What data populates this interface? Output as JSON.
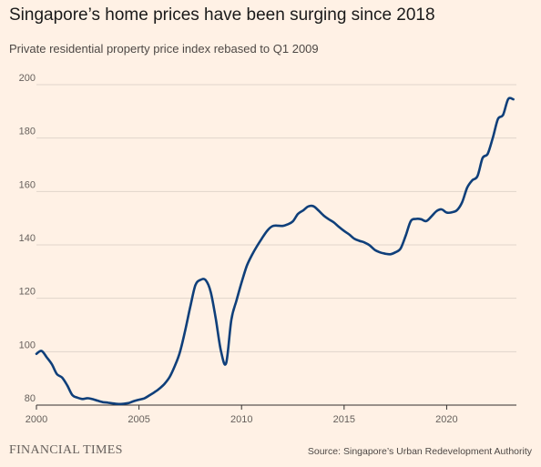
{
  "header": {
    "title": "Singapore’s home prices have been surging since 2018",
    "subtitle": "Private residential property price index rebased to Q1 2009"
  },
  "footer": {
    "logo": "FINANCIAL TIMES",
    "source": "Source: Singapore’s Urban Redevelopment Authority"
  },
  "colors": {
    "background": "#fff1e5",
    "line": "#0f3f7a",
    "grid": "#e0d5cb"
  },
  "chart_data": {
    "type": "line",
    "title": "Singapore’s home prices have been surging since 2018",
    "subtitle": "Private residential property price index rebased to Q1 2009",
    "xlabel": "",
    "ylabel": "",
    "xlim": [
      2000,
      2023.4
    ],
    "ylim": [
      80,
      200
    ],
    "x_ticks": [
      2000,
      2005,
      2010,
      2015,
      2020
    ],
    "y_ticks": [
      80,
      100,
      120,
      140,
      160,
      180,
      200
    ],
    "grid": true,
    "series": [
      {
        "x": [
          2000.0,
          2000.25,
          2000.5,
          2000.75,
          2001.0,
          2001.25,
          2001.5,
          2001.75,
          2002.0,
          2002.25,
          2002.5,
          2002.75,
          2003.0,
          2003.25,
          2003.5,
          2003.75,
          2004.0,
          2004.25,
          2004.5,
          2004.75,
          2005.0,
          2005.25,
          2005.5,
          2005.75,
          2006.0,
          2006.25,
          2006.5,
          2006.75,
          2007.0,
          2007.25,
          2007.5,
          2007.75,
          2008.0,
          2008.25,
          2008.5,
          2008.75,
          2009.0,
          2009.25,
          2009.5,
          2009.75,
          2010.0,
          2010.25,
          2010.5,
          2010.75,
          2011.0,
          2011.25,
          2011.5,
          2011.75,
          2012.0,
          2012.25,
          2012.5,
          2012.75,
          2013.0,
          2013.25,
          2013.5,
          2013.75,
          2014.0,
          2014.25,
          2014.5,
          2014.75,
          2015.0,
          2015.25,
          2015.5,
          2015.75,
          2016.0,
          2016.25,
          2016.5,
          2016.75,
          2017.0,
          2017.25,
          2017.5,
          2017.75,
          2018.0,
          2018.25,
          2018.5,
          2018.75,
          2019.0,
          2019.25,
          2019.5,
          2019.75,
          2020.0,
          2020.25,
          2020.5,
          2020.75,
          2021.0,
          2021.25,
          2021.5,
          2021.75,
          2022.0,
          2022.25,
          2022.5,
          2022.75,
          2023.0,
          2023.25
        ],
        "values": [
          99.2,
          100.3,
          97.9,
          95.3,
          91.6,
          90.3,
          87.4,
          83.8,
          82.8,
          82.3,
          82.6,
          82.2,
          81.6,
          81.1,
          80.9,
          80.6,
          80.4,
          80.5,
          80.8,
          81.5,
          82.0,
          82.5,
          83.6,
          84.8,
          86.2,
          88.0,
          90.6,
          94.7,
          99.9,
          107.9,
          116.8,
          124.9,
          126.9,
          126.8,
          122.3,
          112.0,
          100.1,
          95.7,
          111.9,
          119.1,
          125.9,
          132.0,
          136.1,
          139.5,
          142.5,
          145.3,
          147.0,
          147.2,
          147.1,
          147.7,
          148.8,
          151.6,
          152.9,
          154.4,
          154.5,
          152.9,
          151.0,
          149.6,
          148.4,
          146.7,
          145.2,
          143.9,
          142.3,
          141.5,
          140.9,
          139.8,
          138.1,
          137.2,
          136.7,
          136.5,
          137.2,
          138.6,
          143.4,
          148.9,
          149.7,
          149.6,
          148.9,
          150.6,
          152.6,
          153.3,
          152.1,
          152.2,
          153.0,
          155.9,
          161.4,
          164.2,
          165.7,
          172.5,
          174.1,
          180.1,
          187.1,
          188.7,
          194.6,
          194.5
        ]
      }
    ]
  }
}
